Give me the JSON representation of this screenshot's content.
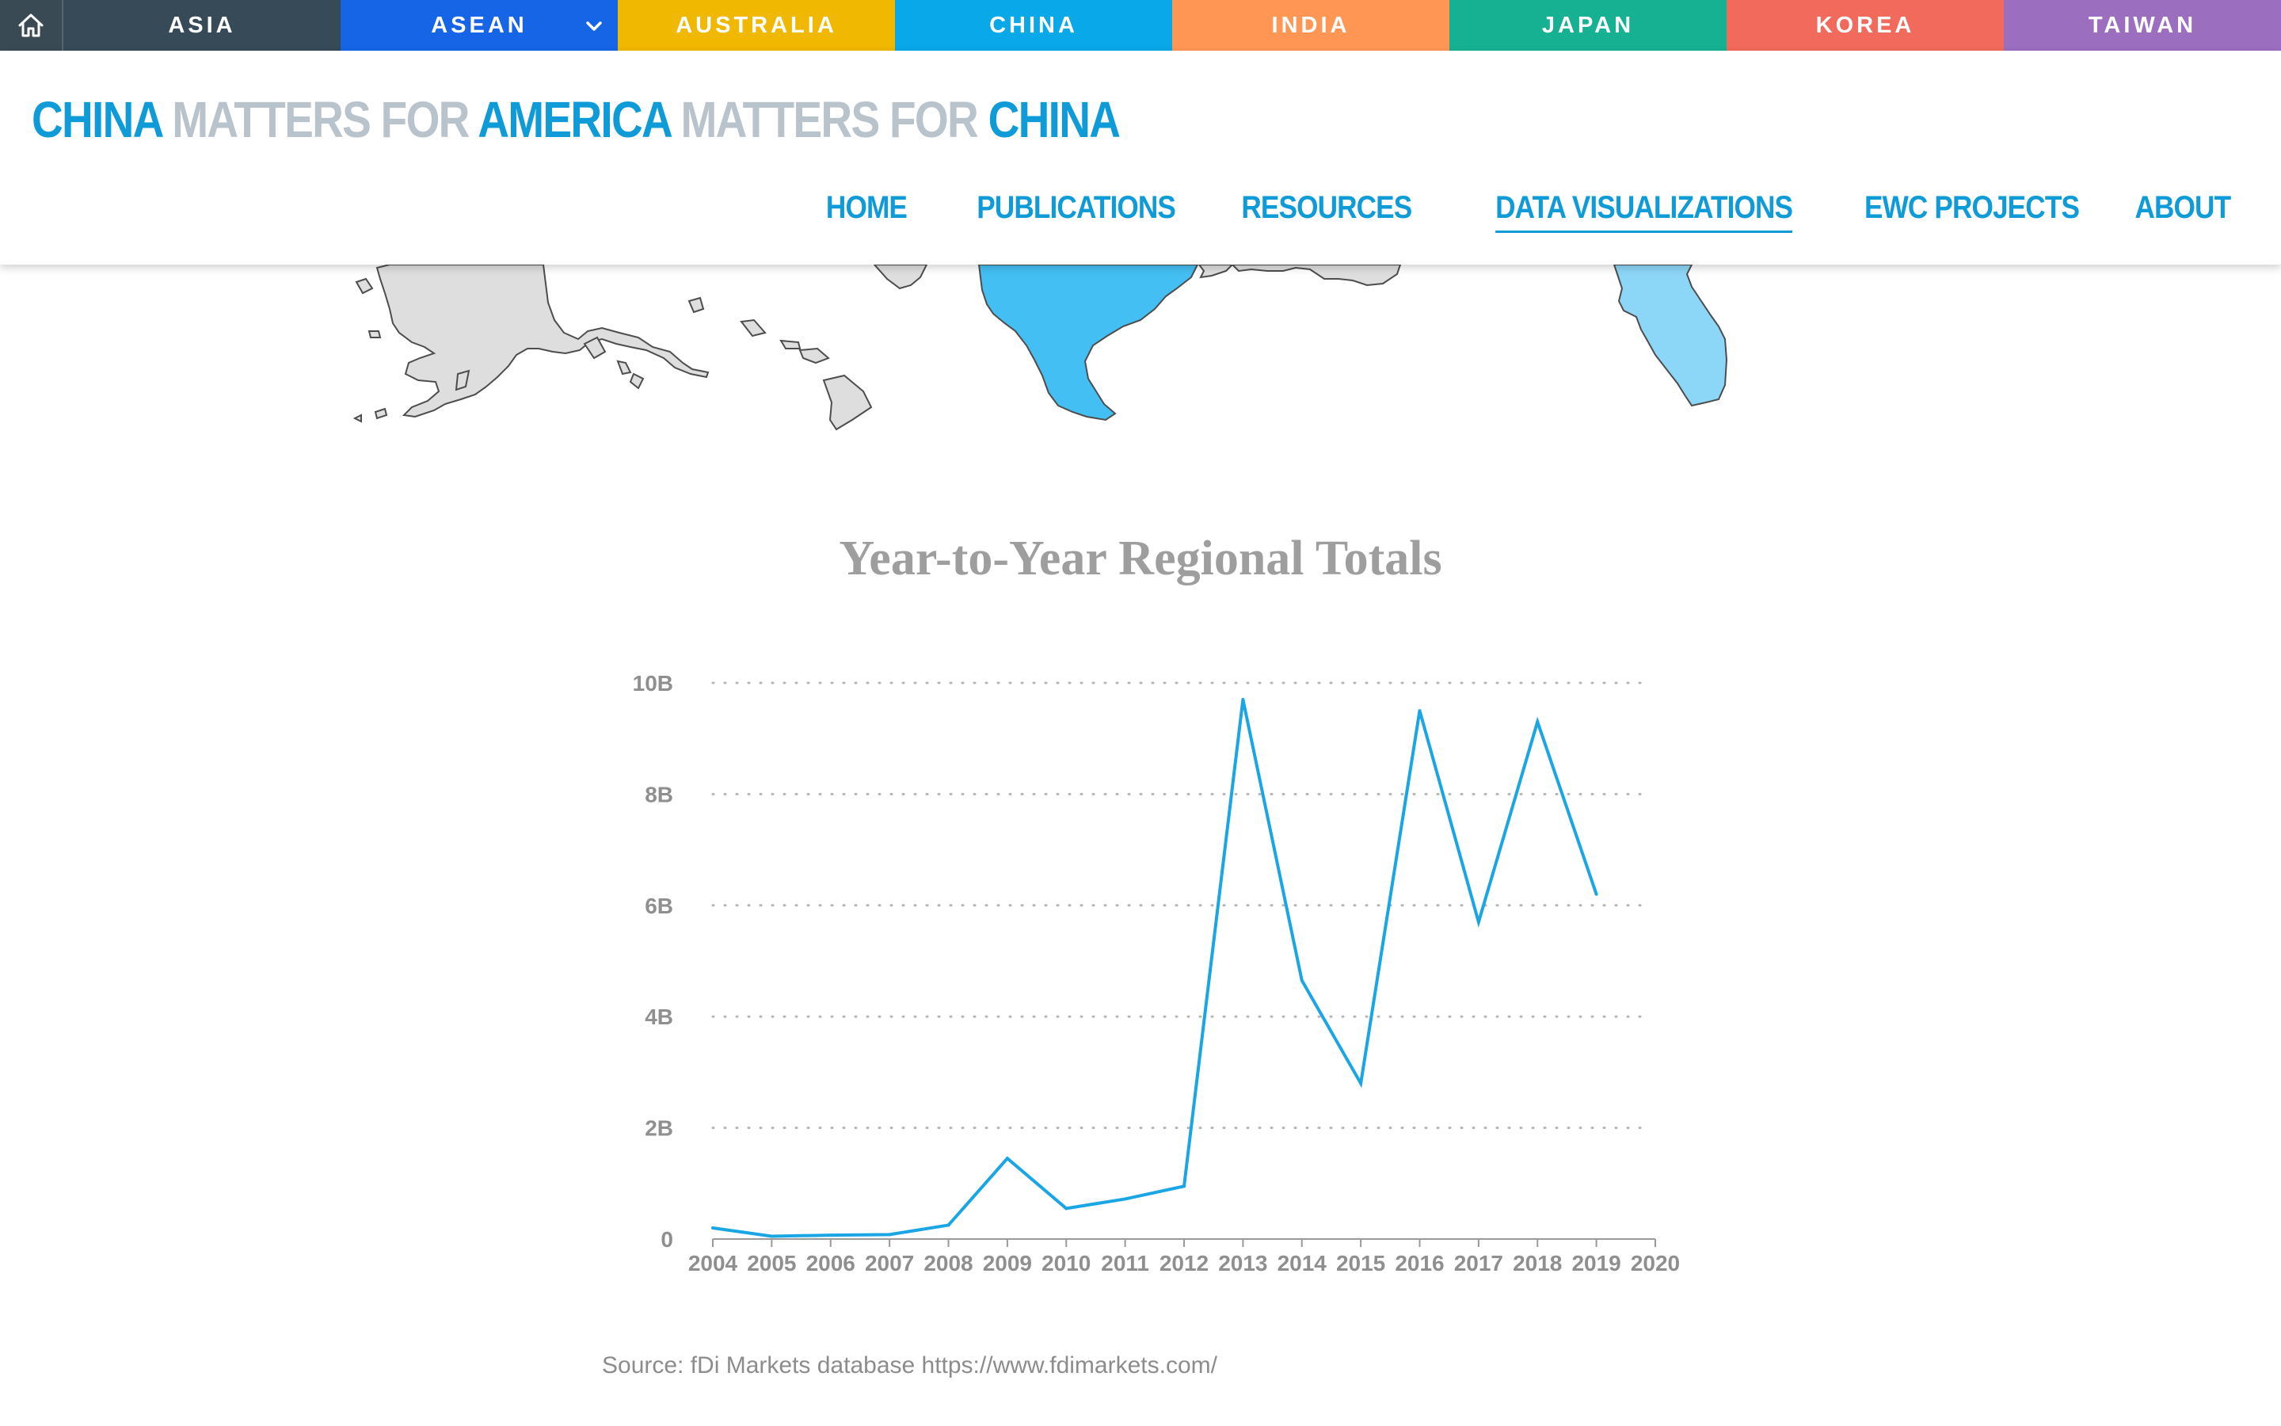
{
  "topbar": {
    "home_icon": "home-icon",
    "regions": [
      {
        "label": "ASIA",
        "color": "#364a57"
      },
      {
        "label": "ASEAN",
        "color": "#1565e6",
        "has_dropdown": true
      },
      {
        "label": "AUSTRALIA",
        "color": "#f0b800"
      },
      {
        "label": "CHINA",
        "color": "#09a8e8"
      },
      {
        "label": "INDIA",
        "color": "#ff9654"
      },
      {
        "label": "JAPAN",
        "color": "#16b192"
      },
      {
        "label": "KOREA",
        "color": "#f26a5b"
      },
      {
        "label": "TAIWAN",
        "color": "#9b6ec0"
      }
    ]
  },
  "header": {
    "title_parts": [
      {
        "text": "CHINA",
        "style": "blue"
      },
      {
        "text": " MATTERS FOR ",
        "style": "gray"
      },
      {
        "text": "AMERICA",
        "style": "blue"
      },
      {
        "text": " MATTERS FOR ",
        "style": "gray"
      },
      {
        "text": "CHINA",
        "style": "blue"
      }
    ],
    "nav": [
      {
        "label": "HOME",
        "active": false
      },
      {
        "label": "PUBLICATIONS",
        "active": false
      },
      {
        "label": "RESOURCES",
        "active": false
      },
      {
        "label": "DATA VISUALIZATIONS",
        "active": true
      },
      {
        "label": "EWC PROJECTS",
        "active": false
      },
      {
        "label": "ABOUT",
        "active": false
      }
    ]
  },
  "colors": {
    "accent": "#0e9bd8",
    "line": "#1aa5e4",
    "map_gray": "#dedede",
    "map_texas": "#44bff3",
    "map_florida": "#8cd6f7"
  },
  "chart_data": {
    "type": "line",
    "title": "Year-to-Year Regional Totals",
    "xlabel": "",
    "ylabel": "",
    "x": [
      "2004",
      "2005",
      "2006",
      "2007",
      "2008",
      "2009",
      "2010",
      "2011",
      "2012",
      "2013",
      "2014",
      "2015",
      "2016",
      "2017",
      "2018",
      "2019"
    ],
    "x_ticks": [
      "2004",
      "2005",
      "2006",
      "2007",
      "2008",
      "2009",
      "2010",
      "2011",
      "2012",
      "2013",
      "2014",
      "2015",
      "2016",
      "2017",
      "2018",
      "2019",
      "2020"
    ],
    "series": [
      {
        "values": [
          0.2,
          0.05,
          0.07,
          0.08,
          0.25,
          1.45,
          0.55,
          0.72,
          0.95,
          9.7,
          4.65,
          2.8,
          9.5,
          5.7,
          9.3,
          6.2
        ]
      }
    ],
    "y_ticks": [
      {
        "value": 0,
        "label": "0"
      },
      {
        "value": 2,
        "label": "2B"
      },
      {
        "value": 4,
        "label": "4B"
      },
      {
        "value": 6,
        "label": "6B"
      },
      {
        "value": 8,
        "label": "8B"
      },
      {
        "value": 10,
        "label": "10B"
      }
    ],
    "ylim": [
      0,
      10
    ],
    "xlim": [
      2004,
      2020
    ],
    "grid": "dotted horizontal",
    "legend": "none"
  },
  "source": {
    "text": "Source: fDi Markets database https://www.fdimarkets.com/"
  }
}
